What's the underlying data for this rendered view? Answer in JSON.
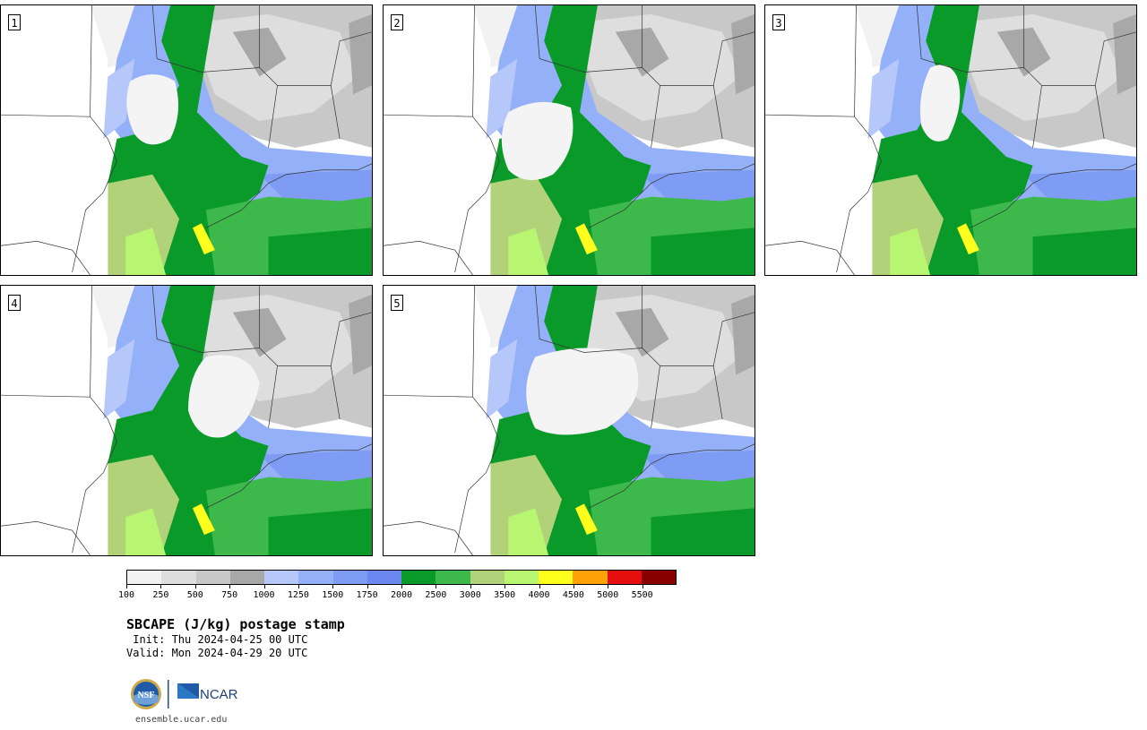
{
  "panels": [
    {
      "label": "1",
      "variant": 1
    },
    {
      "label": "2",
      "variant": 2
    },
    {
      "label": "3",
      "variant": 3
    },
    {
      "label": "4",
      "variant": 4
    },
    {
      "label": "5",
      "variant": 5
    }
  ],
  "colorbar": {
    "colors": [
      "#f2f2f2",
      "#dedede",
      "#c8c8c8",
      "#a8a8a8",
      "#b6c8fa",
      "#94b0f8",
      "#7f9cf5",
      "#6c88f0",
      "#0a9a2a",
      "#3cb94a",
      "#b2d27a",
      "#b8f672",
      "#ffff1e",
      "#ffa20a",
      "#e60f0f",
      "#8a0000"
    ],
    "ticks": [
      "100",
      "250",
      "500",
      "750",
      "1000",
      "1250",
      "1500",
      "1750",
      "2000",
      "2500",
      "3000",
      "3500",
      "4000",
      "4500",
      "5000",
      "5500"
    ]
  },
  "title": "SBCAPE (J/kg) postage stamp",
  "init": " Init: Thu 2024-04-25 00 UTC",
  "valid": "Valid: Mon 2024-04-29 20 UTC",
  "logos": {
    "nsf": "NSF",
    "ncar": "NCAR"
  },
  "url": "ensemble.ucar.edu"
}
